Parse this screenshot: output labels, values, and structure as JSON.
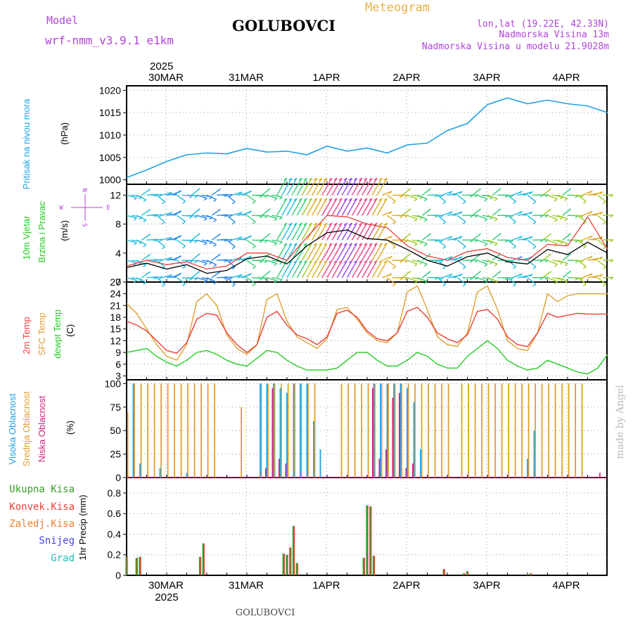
{
  "header": {
    "model_label": "Model",
    "model_name": "wrf-nmm_v3.9.1 e1km",
    "station": "GOLUBOVCI",
    "chart_title": "Meteogram",
    "coords": "lon,lat (19.22E, 42.33N)",
    "elevation": "Nadmorska Visina 13m",
    "model_elevation": "Nadmorska Visina u modelu 21.9028m",
    "footer_station": "GOLUBOVCI",
    "watermark": "made by Angel"
  },
  "time_axis": {
    "year": "2025",
    "days": [
      "30MAR",
      "31MAR",
      "1APR",
      "2APR",
      "3APR",
      "4APR"
    ]
  },
  "colors": {
    "pressure": "#1ea0e6",
    "temp2m": "#e8403a",
    "sfc_temp": "#e0a030",
    "dewpt": "#22cc22",
    "wind_speed": "#000000",
    "gust": "#e8403a",
    "high_cloud": "#1ea0e6",
    "mid_cloud": "#e0a030",
    "low_cloud": "#d4237c",
    "total_precip": "#3a9a2a",
    "conv_precip": "#e8403a",
    "frozen_precip": "#f08030",
    "snow": "#4444dd",
    "graupel": "#22bbbb",
    "violet_text": "#b044d8",
    "ochre_text": "#e8b040"
  },
  "chart_data": [
    {
      "type": "line",
      "panel": "pressure",
      "title_lines": [
        "Pritisak na nivou mora"
      ],
      "unit": "(hPa)",
      "ylim": [
        999,
        1021
      ],
      "yticks": [
        1000,
        1005,
        1010,
        1015,
        1020
      ],
      "grid": true,
      "x_hours": [
        0,
        6,
        12,
        18,
        24,
        30,
        36,
        42,
        48,
        54,
        60,
        66,
        72,
        78,
        84,
        90,
        96,
        102,
        108,
        114,
        120,
        126,
        132,
        138,
        144
      ],
      "values": [
        1000.5,
        1002.2,
        1004.1,
        1005.6,
        1006.0,
        1005.8,
        1007.0,
        1006.2,
        1006.4,
        1005.6,
        1007.5,
        1006.4,
        1007.1,
        1006.0,
        1007.8,
        1008.2,
        1011.0,
        1012.6,
        1016.8,
        1018.3,
        1017.0,
        1017.8,
        1017.0,
        1016.5,
        1015.0
      ]
    },
    {
      "type": "line",
      "panel": "wind",
      "title_lines": [
        "10m Vjetar",
        "Brzina i Pravac"
      ],
      "unit": "(m/s)",
      "compass": [
        "N",
        "W",
        "E",
        "S"
      ],
      "ylim": [
        0,
        13.5
      ],
      "yticks": [
        0,
        4,
        8,
        12
      ],
      "grid": true,
      "x_hours": [
        0,
        6,
        12,
        18,
        24,
        30,
        36,
        42,
        48,
        54,
        60,
        66,
        72,
        78,
        84,
        90,
        96,
        102,
        108,
        114,
        120,
        126,
        132,
        138,
        144
      ],
      "series": [
        {
          "label": "wind speed",
          "values": [
            2.0,
            2.6,
            1.8,
            2.4,
            1.2,
            1.6,
            3.2,
            3.6,
            2.5,
            5.0,
            6.8,
            7.2,
            6.0,
            5.8,
            4.5,
            3.0,
            2.2,
            3.5,
            4.0,
            2.8,
            2.5,
            4.5,
            3.8,
            5.5,
            4.0
          ]
        },
        {
          "label": "gust",
          "values": [
            2.2,
            3.0,
            2.4,
            2.8,
            1.8,
            2.2,
            4.0,
            4.0,
            3.0,
            6.2,
            9.2,
            9.0,
            8.0,
            7.5,
            5.0,
            3.6,
            3.0,
            4.2,
            4.6,
            3.4,
            3.0,
            5.2,
            5.0,
            9.0,
            4.5
          ]
        }
      ],
      "barb_colors": [
        "#3344ff",
        "#2288ee",
        "#22bbdd",
        "#33cc77",
        "#99cc22",
        "#ddaa22",
        "#ee4488",
        "#9944ee"
      ],
      "barb_rows": [
        0.6,
        3.0,
        5.8,
        9.2,
        12.0
      ]
    },
    {
      "type": "line",
      "panel": "temperature",
      "title_lines": [
        "2m Temp",
        "SFC Temp",
        "dewpt Temp"
      ],
      "unit": "(C)",
      "ylim": [
        2,
        27
      ],
      "yticks": [
        3,
        6,
        9,
        12,
        15,
        18,
        21,
        24,
        27
      ],
      "grid": true,
      "x_hours": [
        0,
        3,
        6,
        9,
        12,
        15,
        18,
        21,
        24,
        27,
        30,
        33,
        36,
        39,
        42,
        45,
        48,
        51,
        54,
        57,
        60,
        63,
        66,
        69,
        72,
        75,
        78,
        81,
        84,
        87,
        90,
        93,
        96,
        99,
        102,
        105,
        108,
        111,
        114,
        117,
        120,
        123,
        126,
        129,
        132,
        135,
        138,
        141,
        144
      ],
      "series": [
        {
          "name": "2m Temp",
          "values": [
            17.0,
            16.0,
            14.5,
            12.0,
            9.5,
            8.8,
            11.5,
            17.5,
            19.0,
            18.5,
            14.0,
            11.0,
            9.0,
            11.0,
            18.0,
            19.5,
            16.0,
            13.5,
            12.5,
            11.0,
            13.0,
            19.0,
            19.8,
            18.0,
            14.5,
            12.5,
            12.0,
            14.0,
            19.5,
            20.5,
            18.0,
            14.0,
            12.5,
            11.5,
            13.5,
            19.5,
            20.0,
            17.5,
            13.0,
            11.0,
            10.5,
            14.0,
            19.0,
            18.0,
            18.5,
            19.0,
            18.8,
            18.8,
            18.8
          ]
        },
        {
          "name": "SFC Temp",
          "values": [
            21.5,
            19.0,
            15.0,
            11.0,
            8.0,
            7.0,
            11.0,
            22.0,
            24.0,
            21.0,
            13.5,
            10.0,
            8.5,
            11.0,
            22.5,
            24.0,
            17.0,
            13.0,
            11.5,
            10.0,
            12.5,
            20.0,
            20.5,
            17.5,
            14.0,
            12.0,
            11.5,
            14.0,
            24.5,
            26.0,
            20.0,
            13.0,
            11.0,
            10.5,
            14.0,
            24.5,
            26.0,
            20.0,
            12.0,
            10.0,
            9.5,
            14.0,
            24.0,
            22.0,
            23.5,
            24.0,
            24.0,
            24.0,
            24.0
          ]
        },
        {
          "name": "dewpt Temp",
          "values": [
            9.0,
            9.5,
            10.0,
            8.0,
            6.5,
            5.5,
            7.0,
            9.0,
            9.5,
            8.5,
            7.0,
            6.0,
            5.5,
            7.5,
            9.5,
            9.0,
            7.0,
            5.5,
            4.5,
            4.5,
            4.5,
            5.0,
            7.0,
            9.0,
            9.0,
            7.0,
            5.5,
            5.5,
            7.0,
            9.0,
            8.0,
            6.0,
            5.0,
            5.0,
            8.0,
            10.0,
            12.0,
            10.0,
            7.0,
            5.5,
            4.5,
            5.0,
            7.0,
            6.0,
            5.0,
            4.0,
            3.5,
            5.0,
            8.5
          ]
        }
      ]
    },
    {
      "type": "bar",
      "panel": "clouds",
      "title_lines": [
        "Visoka Oblacnost",
        "Srednja Oblacnost",
        "Niska Oblacnost"
      ],
      "unit": "(%)",
      "ylim": [
        0,
        104
      ],
      "yticks": [
        0,
        25,
        50,
        75,
        100
      ],
      "grid": true,
      "bar_hours": [
        0,
        2,
        4,
        6,
        8,
        10,
        12,
        14,
        16,
        18,
        20,
        22,
        24,
        26,
        28,
        30,
        32,
        34,
        36,
        38,
        40,
        42,
        44,
        46,
        48,
        50,
        52,
        54,
        56,
        58,
        60,
        62,
        64,
        66,
        68,
        70,
        72,
        74,
        76,
        78,
        80,
        82,
        84,
        86,
        88,
        90,
        92,
        94,
        96,
        98,
        100,
        102,
        104,
        106,
        108,
        110,
        112,
        114,
        116,
        118,
        120,
        122,
        124,
        126,
        128,
        130,
        132,
        134,
        136,
        138,
        140,
        142
      ],
      "series": [
        {
          "name": "Visoka Oblacnost",
          "values": [
            0,
            100,
            15,
            0,
            0,
            10,
            0,
            0,
            0,
            5,
            0,
            0,
            0,
            0,
            0,
            0,
            0,
            0,
            0,
            0,
            100,
            100,
            100,
            95,
            90,
            100,
            100,
            100,
            60,
            30,
            0,
            0,
            0,
            0,
            0,
            0,
            0,
            100,
            100,
            100,
            100,
            100,
            95,
            80,
            30,
            0,
            0,
            0,
            0,
            0,
            0,
            0,
            0,
            0,
            0,
            0,
            0,
            0,
            0,
            0,
            20,
            50,
            0,
            0,
            0,
            0,
            0,
            0,
            0,
            0,
            0,
            0
          ]
        },
        {
          "name": "Srednja Oblacnost",
          "values": [
            70,
            100,
            100,
            100,
            100,
            100,
            100,
            100,
            100,
            100,
            100,
            100,
            100,
            100,
            0,
            0,
            0,
            75,
            0,
            0,
            100,
            100,
            100,
            100,
            100,
            100,
            100,
            100,
            100,
            0,
            0,
            0,
            100,
            100,
            100,
            100,
            100,
            100,
            100,
            100,
            100,
            100,
            100,
            100,
            100,
            100,
            100,
            100,
            100,
            0,
            100,
            100,
            100,
            100,
            100,
            100,
            100,
            100,
            100,
            100,
            100,
            100,
            100,
            100,
            100,
            100,
            100,
            100,
            100,
            0,
            0,
            0
          ]
        },
        {
          "name": "Niska Oblacnost",
          "values": [
            0,
            0,
            0,
            0,
            0,
            0,
            0,
            0,
            0,
            0,
            0,
            0,
            0,
            0,
            0,
            0,
            0,
            0,
            0,
            0,
            0,
            10,
            95,
            20,
            15,
            0,
            0,
            0,
            0,
            0,
            0,
            0,
            0,
            0,
            0,
            0,
            0,
            95,
            20,
            30,
            85,
            90,
            10,
            15,
            0,
            0,
            0,
            0,
            0,
            0,
            0,
            0,
            0,
            0,
            0,
            0,
            0,
            0,
            0,
            0,
            0,
            0,
            0,
            0,
            0,
            0,
            0,
            0,
            0,
            0,
            0,
            5
          ]
        }
      ]
    },
    {
      "type": "bar",
      "panel": "precipitation",
      "title_lines": [
        "1hr Precip (mm)"
      ],
      "legend": [
        "Ukupna Kisa",
        "Konvek.Kisa",
        "Zaledj.Kisa",
        "Snijeg",
        "Grad"
      ],
      "ylim": [
        0,
        0.95
      ],
      "yticks": [
        0,
        0.2,
        0.4,
        0.6,
        0.8
      ],
      "grid": true,
      "bars": [
        {
          "hour": 0,
          "value": 0.18
        },
        {
          "hour": 3,
          "value": 0.17
        },
        {
          "hour": 4,
          "value": 0.18
        },
        {
          "hour": 22,
          "value": 0.18
        },
        {
          "hour": 23,
          "value": 0.31
        },
        {
          "hour": 47,
          "value": 0.21
        },
        {
          "hour": 48,
          "value": 0.2
        },
        {
          "hour": 49,
          "value": 0.27
        },
        {
          "hour": 50,
          "value": 0.48
        },
        {
          "hour": 51,
          "value": 0.12
        },
        {
          "hour": 71,
          "value": 0.17
        },
        {
          "hour": 72,
          "value": 0.68
        },
        {
          "hour": 73,
          "value": 0.67
        },
        {
          "hour": 74,
          "value": 0.19
        },
        {
          "hour": 95,
          "value": 0.06
        },
        {
          "hour": 101,
          "value": 0.02
        },
        {
          "hour": 102,
          "value": 0.04
        },
        {
          "hour": 120,
          "value": 0.01
        },
        {
          "hour": 121,
          "value": 0.02
        }
      ]
    }
  ]
}
